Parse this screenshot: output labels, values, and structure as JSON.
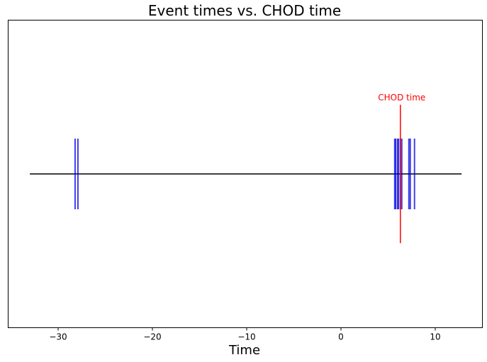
{
  "chart_data": {
    "type": "event-timeline",
    "title": "Event times vs. CHOD time",
    "xlabel": "Time",
    "ylabel": "",
    "xlim": [
      -35.3,
      15.0
    ],
    "xticks": [
      -30,
      -20,
      -10,
      0,
      10
    ],
    "xtick_labels": [
      "−30",
      "−20",
      "−10",
      "0",
      "10"
    ],
    "ylim": [
      -1,
      1
    ],
    "yticks": [],
    "baseline": {
      "x_start": -33.0,
      "x_end": 12.8,
      "y": 0,
      "color": "#000000"
    },
    "events": {
      "color": "#0000dd",
      "y_range": [
        -0.23,
        0.23
      ],
      "times": [
        -28.2,
        -27.9,
        5.7,
        5.8,
        6.0,
        6.1,
        6.3,
        6.45,
        7.2,
        7.35,
        7.8
      ]
    },
    "chod": {
      "time": 6.3,
      "y_range": [
        -0.45,
        0.45
      ],
      "color": "#ff0000",
      "label": "CHOD time"
    },
    "grid": false,
    "legend": "none"
  }
}
